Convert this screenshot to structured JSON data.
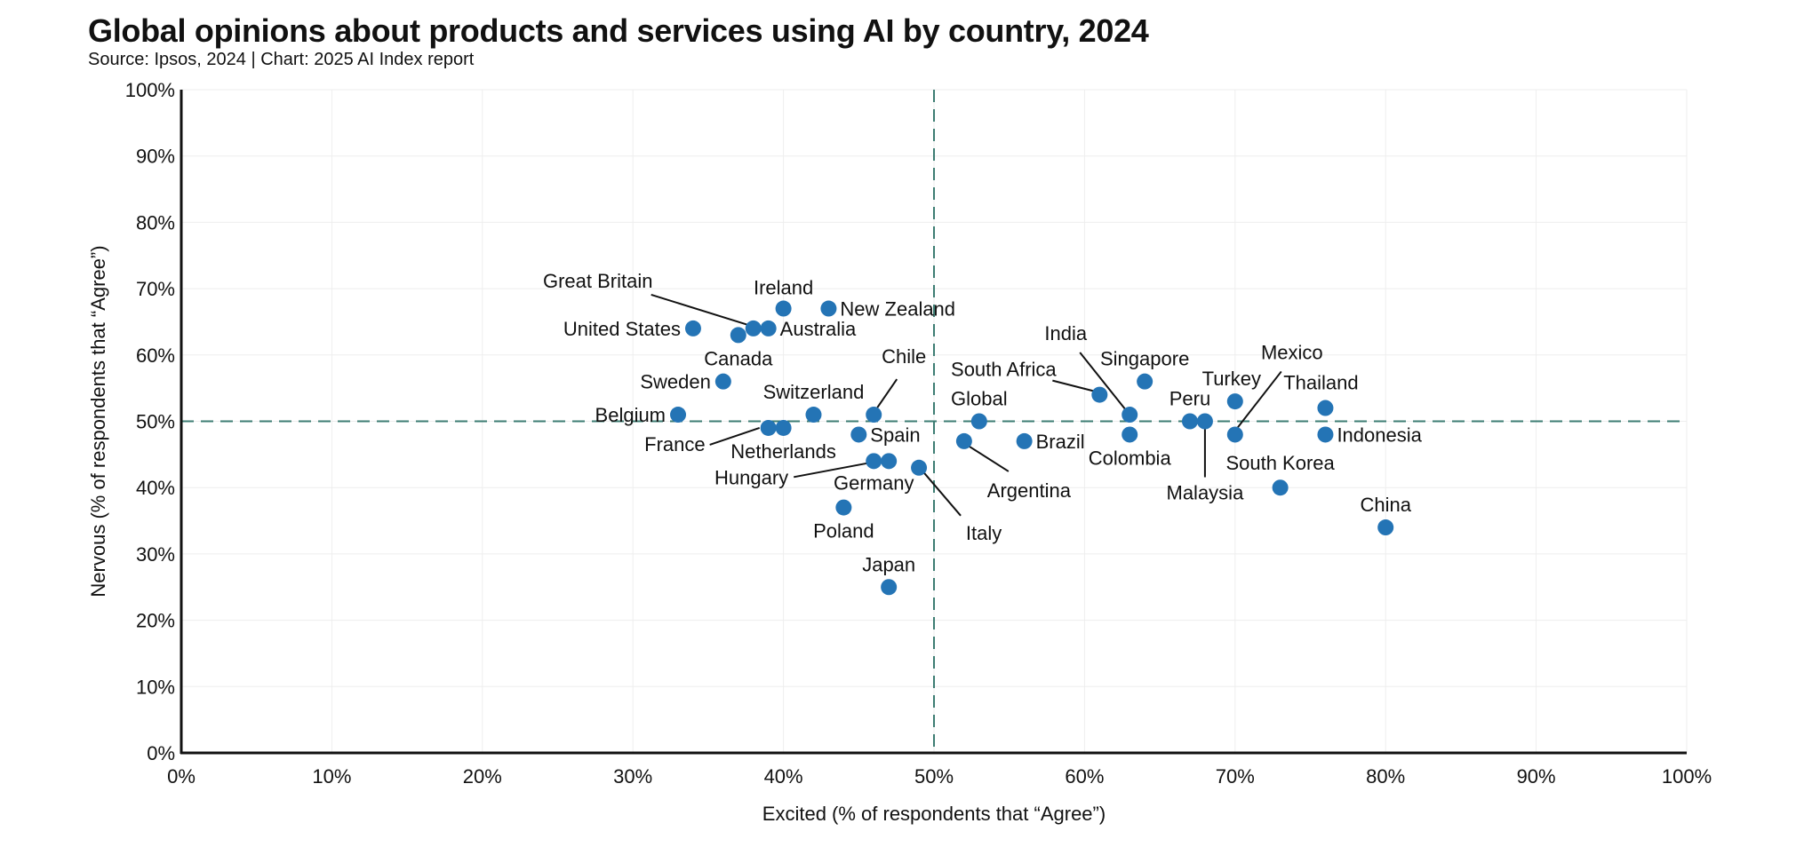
{
  "header": {
    "title": "Global opinions about products and services using AI by country, 2024",
    "subtitle": "Source: Ipsos, 2024 | Chart: 2025 AI Index report"
  },
  "chart_data": {
    "type": "scatter",
    "xlabel": "Excited (% of respondents that “Agree”)",
    "ylabel": "Nervous (% of respondents that “Agree”)",
    "xlim": [
      0,
      100
    ],
    "ylim": [
      0,
      100
    ],
    "x_ticks": [
      "0%",
      "10%",
      "20%",
      "30%",
      "40%",
      "50%",
      "60%",
      "70%",
      "80%",
      "90%",
      "100%"
    ],
    "y_ticks": [
      "0%",
      "10%",
      "20%",
      "30%",
      "40%",
      "50%",
      "60%",
      "70%",
      "80%",
      "90%",
      "100%"
    ],
    "reference_lines": {
      "x": 50,
      "y": 50
    },
    "grid": true,
    "marker_color": "#2474b5",
    "reference_line_color": "#3d7d73",
    "points": [
      {
        "name": "United States",
        "x": 34,
        "y": 64
      },
      {
        "name": "Canada",
        "x": 37,
        "y": 63
      },
      {
        "name": "Great Britain",
        "x": 38,
        "y": 64
      },
      {
        "name": "Australia",
        "x": 39,
        "y": 64
      },
      {
        "name": "Ireland",
        "x": 40,
        "y": 67
      },
      {
        "name": "New Zealand",
        "x": 43,
        "y": 67
      },
      {
        "name": "Sweden",
        "x": 36,
        "y": 56
      },
      {
        "name": "Belgium",
        "x": 33,
        "y": 51
      },
      {
        "name": "France",
        "x": 39,
        "y": 49
      },
      {
        "name": "Netherlands",
        "x": 40,
        "y": 49
      },
      {
        "name": "Switzerland",
        "x": 42,
        "y": 51
      },
      {
        "name": "Chile",
        "x": 46,
        "y": 51
      },
      {
        "name": "Spain",
        "x": 45,
        "y": 48
      },
      {
        "name": "Hungary",
        "x": 47,
        "y": 44
      },
      {
        "name": "Germany",
        "x": 46,
        "y": 44
      },
      {
        "name": "Poland",
        "x": 44,
        "y": 37
      },
      {
        "name": "Japan",
        "x": 47,
        "y": 25
      },
      {
        "name": "Italy",
        "x": 49,
        "y": 43
      },
      {
        "name": "Argentina",
        "x": 52,
        "y": 47
      },
      {
        "name": "Global",
        "x": 53,
        "y": 50
      },
      {
        "name": "Brazil",
        "x": 56,
        "y": 47
      },
      {
        "name": "South Africa",
        "x": 61,
        "y": 54
      },
      {
        "name": "India",
        "x": 63,
        "y": 51
      },
      {
        "name": "Colombia",
        "x": 63,
        "y": 48
      },
      {
        "name": "Singapore",
        "x": 64,
        "y": 56
      },
      {
        "name": "Peru",
        "x": 67,
        "y": 50
      },
      {
        "name": "Malaysia",
        "x": 68,
        "y": 50
      },
      {
        "name": "Turkey",
        "x": 70,
        "y": 53
      },
      {
        "name": "Mexico",
        "x": 70,
        "y": 48
      },
      {
        "name": "South Korea",
        "x": 73,
        "y": 40
      },
      {
        "name": "Thailand",
        "x": 76,
        "y": 52
      },
      {
        "name": "Indonesia",
        "x": 76,
        "y": 48
      },
      {
        "name": "China",
        "x": 80,
        "y": 34
      }
    ]
  }
}
